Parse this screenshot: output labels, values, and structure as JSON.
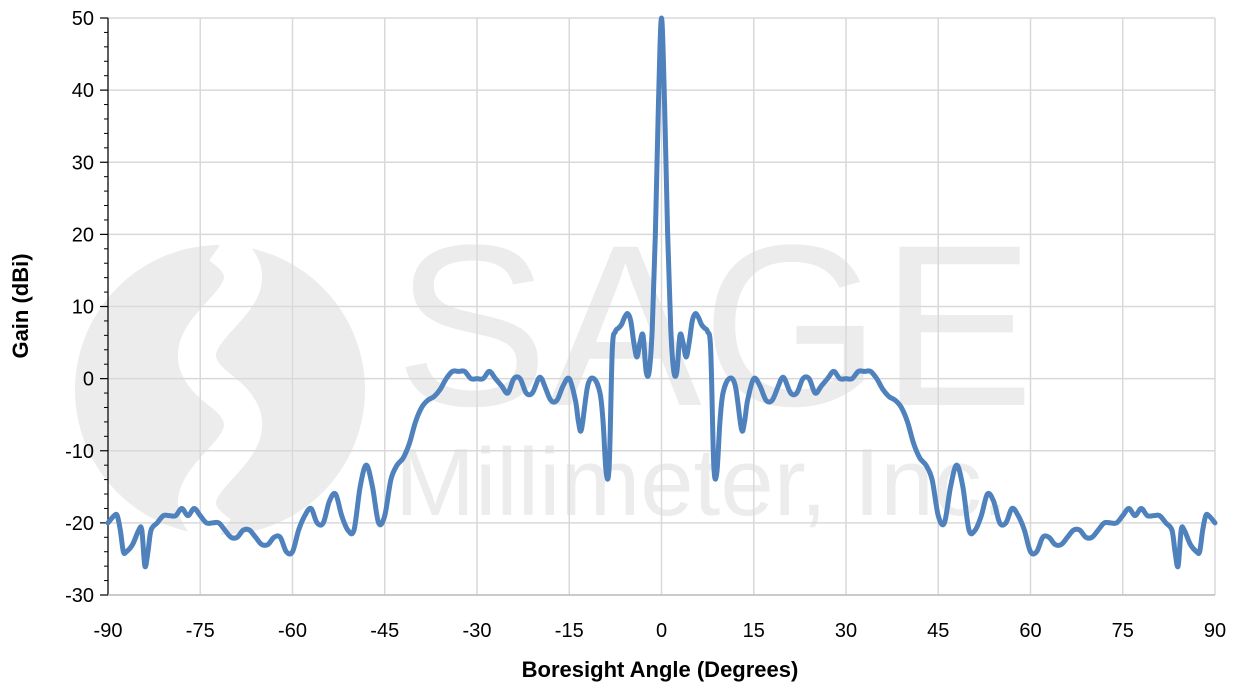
{
  "chart_data": {
    "type": "line",
    "xlabel": "Boresight Angle (Degrees)",
    "ylabel": "Gain (dBi)",
    "xlim": [
      -90,
      90
    ],
    "ylim": [
      -30,
      50
    ],
    "xticks": [
      -90,
      -75,
      -60,
      -45,
      -30,
      -15,
      0,
      15,
      30,
      45,
      60,
      75,
      90
    ],
    "yticks": [
      -30,
      -20,
      -10,
      0,
      10,
      20,
      30,
      40,
      50
    ],
    "grid": true,
    "legend": "none",
    "series_color": "#4F81BD",
    "watermark": {
      "logo_text": "SAGE",
      "sub_text": "Millimeter, Inc."
    },
    "series": [
      {
        "x": [
          0,
          0.5,
          1,
          1.5,
          2,
          2.5,
          3,
          3.5,
          4,
          4.5,
          5,
          5.5,
          6,
          6.5,
          7,
          7.5,
          8,
          8.5,
          9,
          9.5,
          10,
          11,
          12,
          13,
          13.5,
          14,
          15,
          16,
          17,
          18,
          19,
          19.5,
          20,
          21,
          22,
          23,
          24,
          25,
          26,
          27,
          28,
          29,
          30,
          31,
          32,
          33,
          34,
          35,
          36,
          37,
          38,
          39,
          40,
          41,
          42,
          43,
          44,
          45,
          46,
          47,
          48,
          49,
          50,
          51,
          52,
          53,
          54,
          55,
          56,
          57,
          58,
          59,
          60,
          61,
          62,
          63,
          64,
          65,
          66,
          67,
          68,
          69,
          70,
          71,
          72,
          73,
          74,
          75,
          76,
          77,
          78,
          79,
          80,
          81,
          82,
          83,
          83.5,
          84,
          84.5,
          85,
          86,
          87,
          87.5,
          88,
          88.5,
          89,
          90
        ],
        "y": [
          50,
          38,
          20,
          7,
          1,
          1,
          6,
          5,
          3,
          5,
          8,
          9,
          8.5,
          7.5,
          7,
          6.5,
          4,
          -12,
          -13,
          -6,
          -2,
          0,
          -1,
          -7,
          -6,
          -3,
          0,
          -1,
          -3,
          -3,
          -1,
          0,
          0,
          -2,
          -2,
          0,
          0,
          -2,
          -1,
          0,
          1,
          0,
          0,
          0,
          1,
          1,
          1,
          0,
          -1.5,
          -2.5,
          -3,
          -4,
          -6,
          -9,
          -11,
          -12,
          -14,
          -19,
          -20,
          -15,
          -12,
          -15,
          -21,
          -21,
          -19,
          -16,
          -17,
          -20,
          -20,
          -18,
          -19,
          -21,
          -24,
          -24,
          -22,
          -22,
          -23,
          -23,
          -22,
          -21,
          -21,
          -22,
          -22,
          -21,
          -20,
          -20,
          -20,
          -19,
          -18,
          -19,
          -18,
          -19,
          -19,
          -19,
          -20,
          -21,
          -24,
          -26,
          -21,
          -21,
          -23,
          -24,
          -24,
          -21,
          -19,
          -19,
          -20
        ]
      }
    ]
  }
}
